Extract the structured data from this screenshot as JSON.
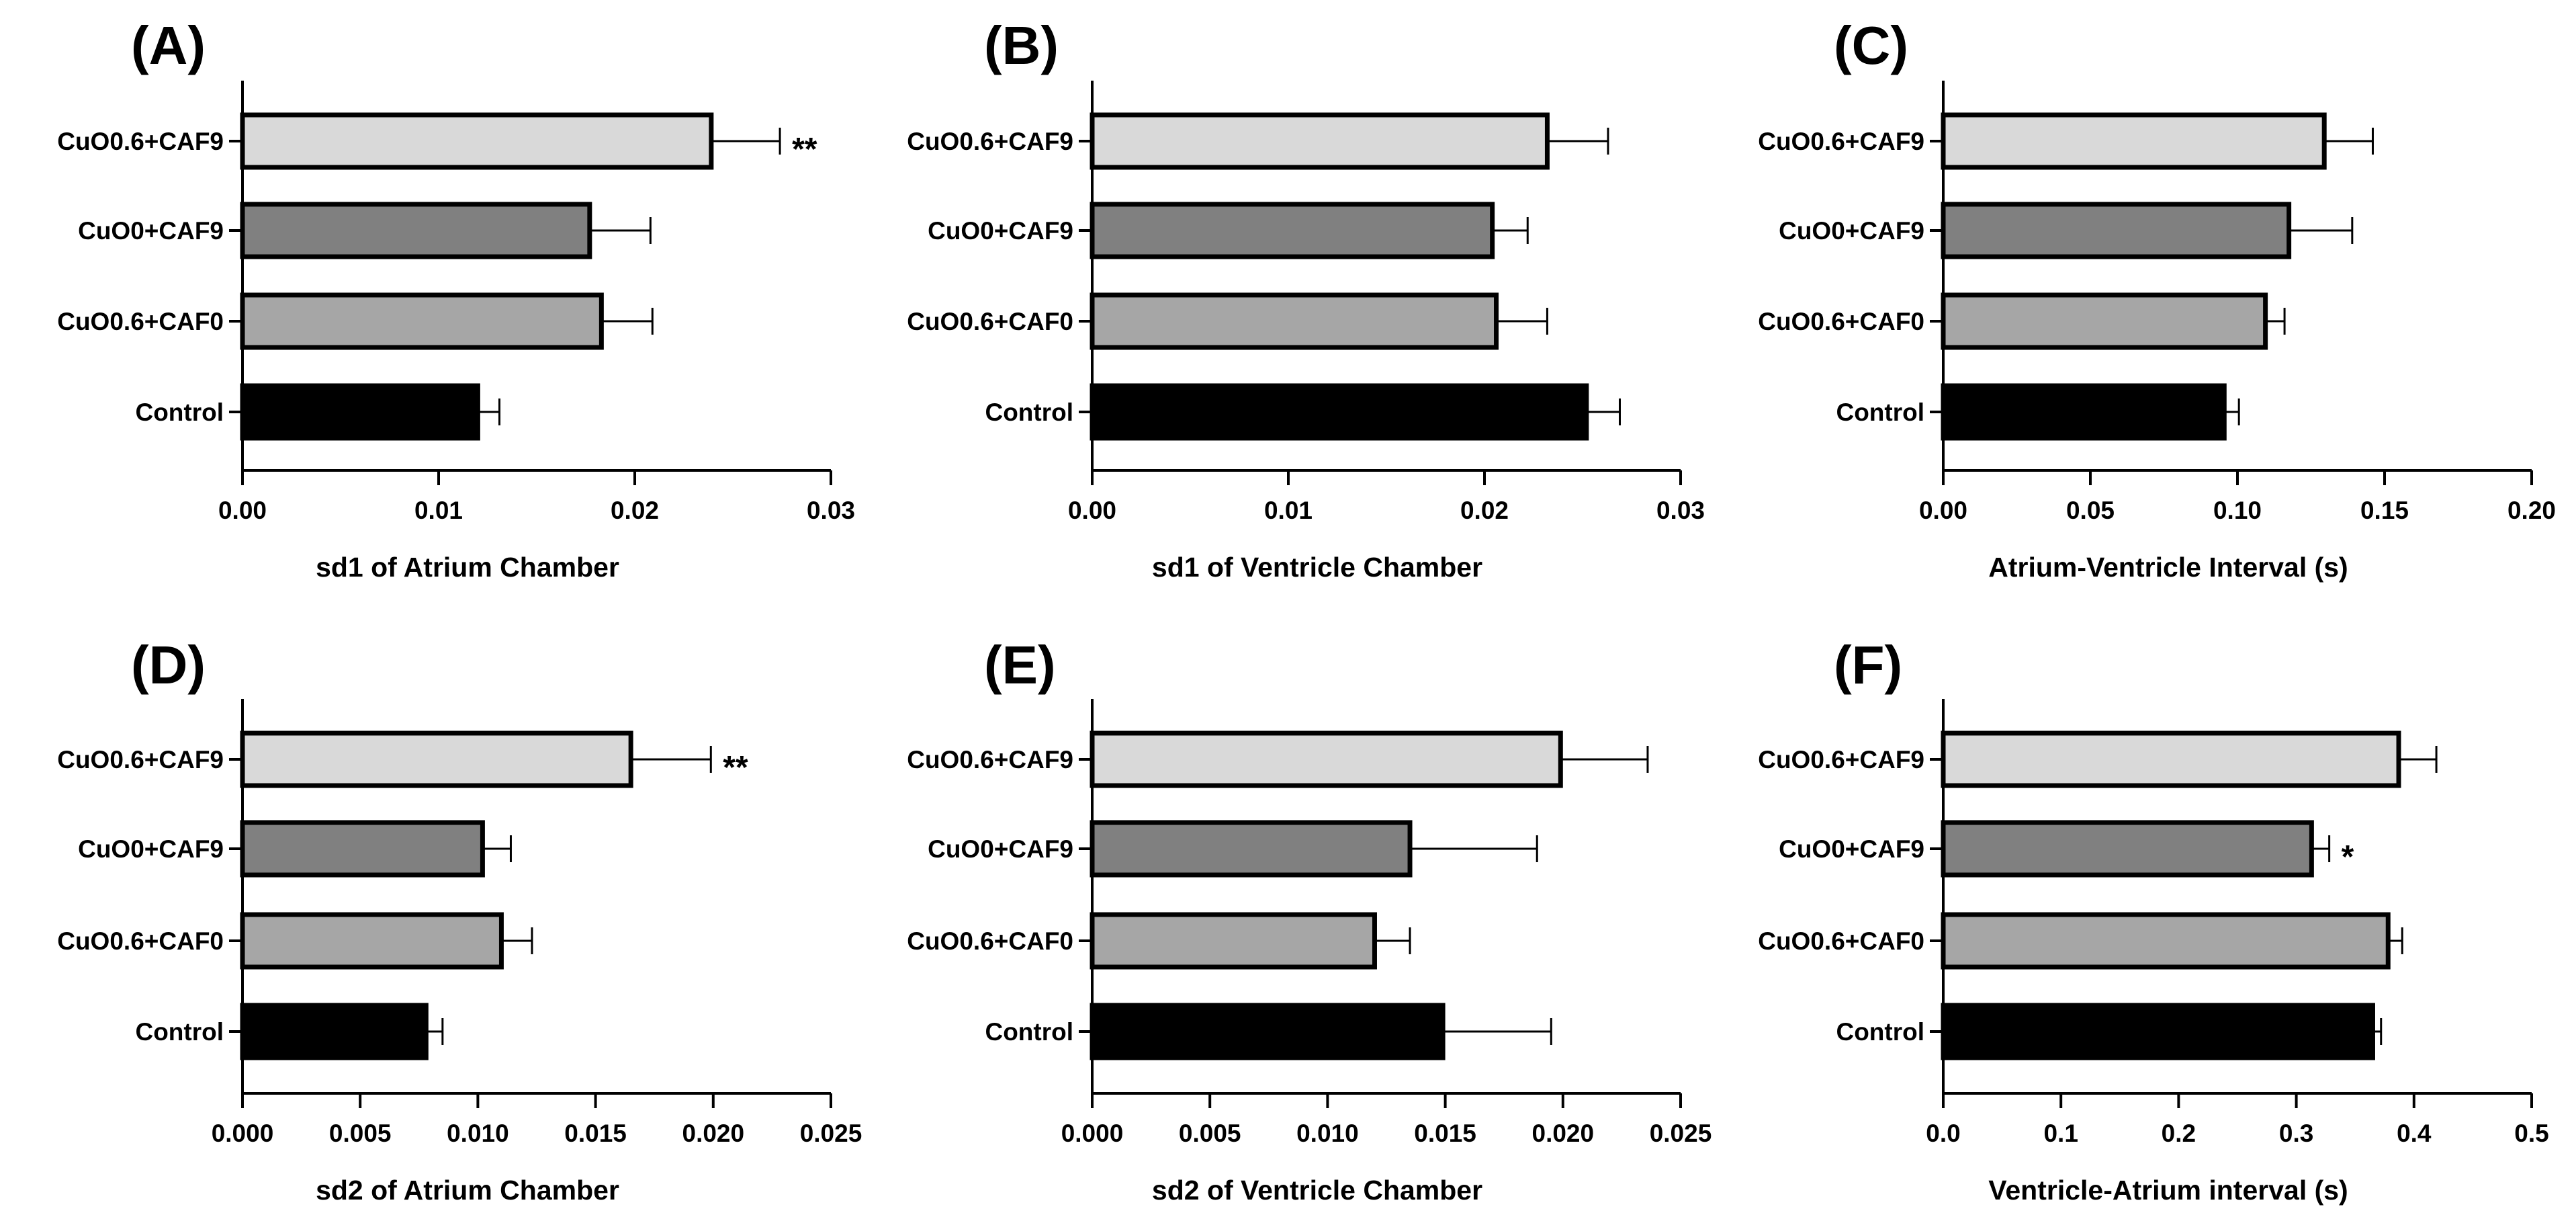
{
  "chart_data": [
    {
      "type": "bar",
      "orientation": "horizontal",
      "panel_label": "(A)",
      "xlabel": "sd1 of Atrium Chamber",
      "xlim": [
        0,
        0.03
      ],
      "ticks": [
        "0.00",
        "0.01",
        "0.02",
        "0.03"
      ],
      "categories": [
        "CuO0.6+CAF9",
        "CuO0+CAF9",
        "CuO0.6+CAF0",
        "Control"
      ],
      "values": [
        0.0239,
        0.0177,
        0.0183,
        0.012
      ],
      "errors": [
        0.0035,
        0.0031,
        0.0026,
        0.0011
      ],
      "colors": [
        "#d9d9d9",
        "#808080",
        "#a6a6a6",
        "#000000"
      ],
      "significance": [
        "**",
        "",
        "",
        ""
      ]
    },
    {
      "type": "bar",
      "orientation": "horizontal",
      "panel_label": "(B)",
      "xlabel": "sd1 of Ventricle Chamber",
      "xlim": [
        0,
        0.03
      ],
      "ticks": [
        "0.00",
        "0.01",
        "0.02",
        "0.03"
      ],
      "categories": [
        "CuO0.6+CAF9",
        "CuO0+CAF9",
        "CuO0.6+CAF0",
        "Control"
      ],
      "values": [
        0.0232,
        0.0204,
        0.0206,
        0.0252
      ],
      "errors": [
        0.0031,
        0.0018,
        0.0026,
        0.0017
      ],
      "colors": [
        "#d9d9d9",
        "#808080",
        "#a6a6a6",
        "#000000"
      ],
      "significance": [
        "",
        "",
        "",
        ""
      ]
    },
    {
      "type": "bar",
      "orientation": "horizontal",
      "panel_label": "(C)",
      "xlabel": "Atrium-Ventricle Interval (s)",
      "xlim": [
        0,
        0.2
      ],
      "ticks": [
        "0.00",
        "0.05",
        "0.10",
        "0.15",
        "0.20"
      ],
      "categories": [
        "CuO0.6+CAF9",
        "CuO0+CAF9",
        "CuO0.6+CAF0",
        "Control"
      ],
      "values": [
        0.1295,
        0.1175,
        0.1095,
        0.0955
      ],
      "errors": [
        0.0165,
        0.0215,
        0.0065,
        0.005
      ],
      "colors": [
        "#d9d9d9",
        "#808080",
        "#a6a6a6",
        "#000000"
      ],
      "significance": [
        "",
        "",
        "",
        ""
      ]
    },
    {
      "type": "bar",
      "orientation": "horizontal",
      "panel_label": "(D)",
      "xlabel": "sd2 of Atrium Chamber",
      "xlim": [
        0,
        0.025
      ],
      "ticks": [
        "0.000",
        "0.005",
        "0.010",
        "0.015",
        "0.020",
        "0.025"
      ],
      "categories": [
        "CuO0.6+CAF9",
        "CuO0+CAF9",
        "CuO0.6+CAF0",
        "Control"
      ],
      "values": [
        0.0165,
        0.0102,
        0.011,
        0.0078
      ],
      "errors": [
        0.0034,
        0.0012,
        0.0013,
        0.0007
      ],
      "colors": [
        "#d9d9d9",
        "#808080",
        "#a6a6a6",
        "#000000"
      ],
      "significance": [
        "**",
        "",
        "",
        ""
      ]
    },
    {
      "type": "bar",
      "orientation": "horizontal",
      "panel_label": "(E)",
      "xlabel": "sd2 of Ventricle Chamber",
      "xlim": [
        0,
        0.025
      ],
      "ticks": [
        "0.000",
        "0.005",
        "0.010",
        "0.015",
        "0.020",
        "0.025"
      ],
      "categories": [
        "CuO0.6+CAF9",
        "CuO0+CAF9",
        "CuO0.6+CAF0",
        "Control"
      ],
      "values": [
        0.0199,
        0.0135,
        0.012,
        0.0149
      ],
      "errors": [
        0.0037,
        0.0054,
        0.0015,
        0.0046
      ],
      "colors": [
        "#d9d9d9",
        "#808080",
        "#a6a6a6",
        "#000000"
      ],
      "significance": [
        "",
        "",
        "",
        ""
      ]
    },
    {
      "type": "bar",
      "orientation": "horizontal",
      "panel_label": "(F)",
      "xlabel": "Ventricle-Atrium interval (s)",
      "xlim": [
        0,
        0.5
      ],
      "ticks": [
        "0.0",
        "0.1",
        "0.2",
        "0.3",
        "0.4",
        "0.5"
      ],
      "categories": [
        "CuO0.6+CAF9",
        "CuO0+CAF9",
        "CuO0.6+CAF0",
        "Control"
      ],
      "values": [
        0.387,
        0.313,
        0.378,
        0.365
      ],
      "errors": [
        0.032,
        0.015,
        0.012,
        0.007
      ],
      "colors": [
        "#d9d9d9",
        "#808080",
        "#a6a6a6",
        "#000000"
      ],
      "significance": [
        "",
        "*",
        "",
        ""
      ]
    }
  ]
}
